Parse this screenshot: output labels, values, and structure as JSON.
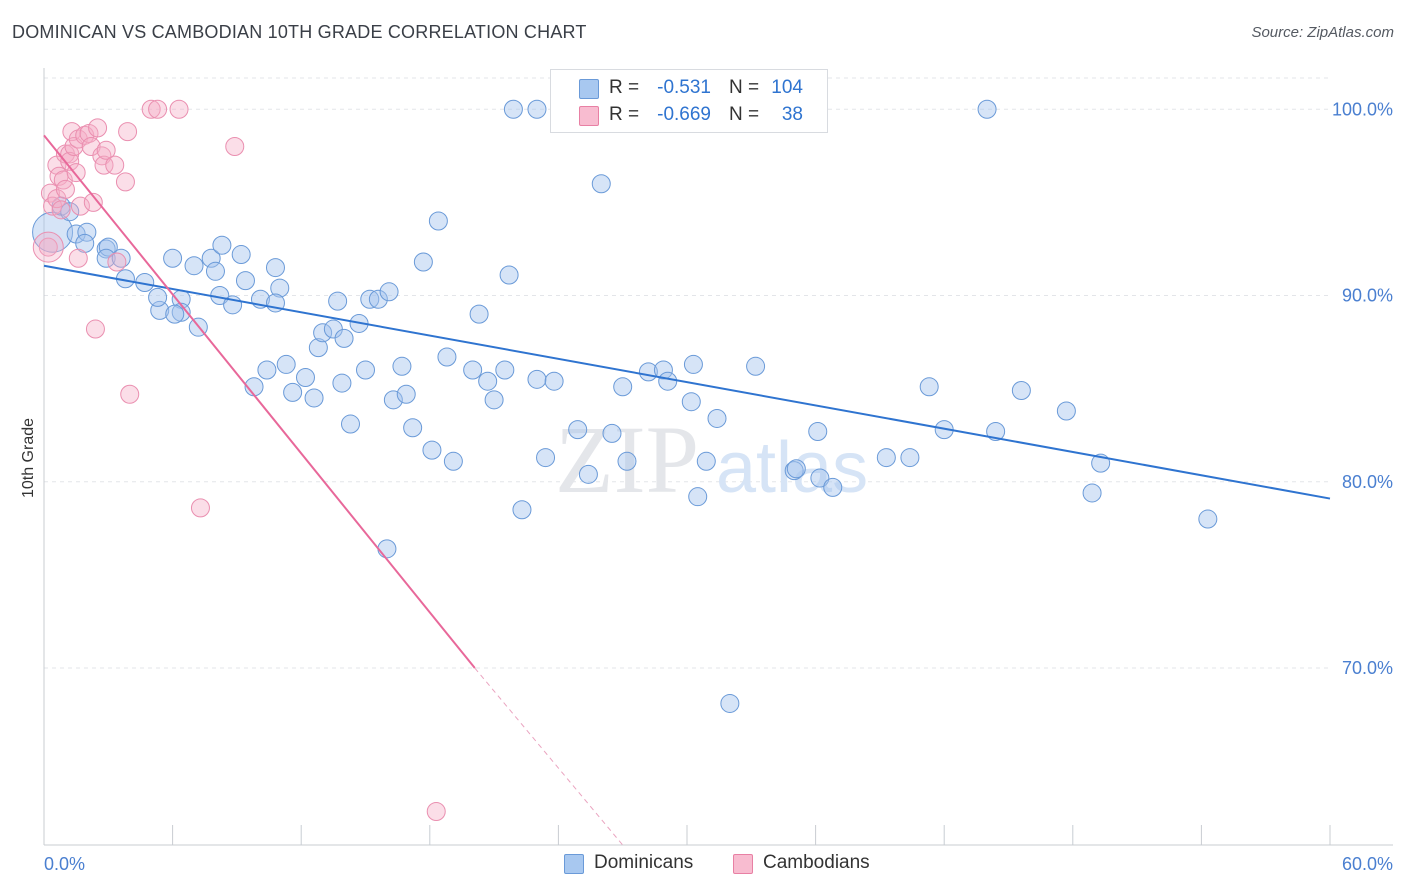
{
  "header": {
    "title": "DOMINICAN VS CAMBODIAN 10TH GRADE CORRELATION CHART",
    "source": "Source: ZipAtlas.com"
  },
  "watermark": {
    "zip": "ZIP",
    "atlas": "atlas"
  },
  "legend": {
    "rows": [
      {
        "r_label": "R =",
        "r_value": "-0.531",
        "n_label": "N =",
        "n_value": "104",
        "color": "#a8c8f0",
        "stroke": "#6a9ad8"
      },
      {
        "r_label": "R =",
        "r_value": "-0.669",
        "n_label": "N =",
        "n_value": "38",
        "color": "#f8bcd0",
        "stroke": "#e880a4"
      }
    ]
  },
  "bottom_legend": [
    {
      "label": "Dominicans",
      "color": "#a8c8f0",
      "stroke": "#6a9ad8"
    },
    {
      "label": "Cambodians",
      "color": "#f8bcd0",
      "stroke": "#e880a4"
    }
  ],
  "chart_data": {
    "type": "scatter",
    "title": "DOMINICAN VS CAMBODIAN 10TH GRADE CORRELATION CHART",
    "xlabel": "",
    "ylabel": "10th Grade",
    "xlim": [
      0,
      60
    ],
    "ylim": [
      60.5,
      102
    ],
    "x_ticks": [
      "0.0%",
      "60.0%"
    ],
    "y_ticks": [
      {
        "value": 100,
        "label": "100.0%"
      },
      {
        "value": 90,
        "label": "90.0%"
      },
      {
        "value": 80,
        "label": "80.0%"
      },
      {
        "value": 70,
        "label": "70.0%"
      }
    ],
    "grid": true,
    "legend_position": "top-center",
    "series": [
      {
        "name": "Dominicans",
        "color": "#6fa3e6",
        "trend": {
          "x0": 0,
          "y0": 91.6,
          "x1": 60,
          "y1": 79.1,
          "color": "#2f74d0"
        },
        "points": [
          [
            0.4,
            93.4
          ],
          [
            0.8,
            94.8
          ],
          [
            1.2,
            94.5
          ],
          [
            1.5,
            93.3
          ],
          [
            2.0,
            93.4
          ],
          [
            1.9,
            92.8
          ],
          [
            2.9,
            92.5
          ],
          [
            3.0,
            92.6
          ],
          [
            2.9,
            92.0
          ],
          [
            3.6,
            92.0
          ],
          [
            3.8,
            90.9
          ],
          [
            4.7,
            90.7
          ],
          [
            5.4,
            89.2
          ],
          [
            5.3,
            89.9
          ],
          [
            6.0,
            92.0
          ],
          [
            6.4,
            89.8
          ],
          [
            6.4,
            89.1
          ],
          [
            7.0,
            91.6
          ],
          [
            7.2,
            88.3
          ],
          [
            7.8,
            92.0
          ],
          [
            8.0,
            91.3
          ],
          [
            8.2,
            90.0
          ],
          [
            8.3,
            92.7
          ],
          [
            8.8,
            89.5
          ],
          [
            9.2,
            92.2
          ],
          [
            9.4,
            90.8
          ],
          [
            9.8,
            85.1
          ],
          [
            10.1,
            89.8
          ],
          [
            10.4,
            86.0
          ],
          [
            10.8,
            91.5
          ],
          [
            11.0,
            90.4
          ],
          [
            11.3,
            86.3
          ],
          [
            11.6,
            84.8
          ],
          [
            12.2,
            85.6
          ],
          [
            12.6,
            84.5
          ],
          [
            12.8,
            87.2
          ],
          [
            13.0,
            88.0
          ],
          [
            13.5,
            88.2
          ],
          [
            13.7,
            89.7
          ],
          [
            14.0,
            87.7
          ],
          [
            14.3,
            83.1
          ],
          [
            14.7,
            88.5
          ],
          [
            15.0,
            86.0
          ],
          [
            15.2,
            89.8
          ],
          [
            15.6,
            89.8
          ],
          [
            16.1,
            90.2
          ],
          [
            16.3,
            84.4
          ],
          [
            16.7,
            86.2
          ],
          [
            16.9,
            84.7
          ],
          [
            17.2,
            82.9
          ],
          [
            17.7,
            91.8
          ],
          [
            18.1,
            81.7
          ],
          [
            18.4,
            94.0
          ],
          [
            18.8,
            86.7
          ],
          [
            19.1,
            81.1
          ],
          [
            20.0,
            86.0
          ],
          [
            20.3,
            89.0
          ],
          [
            20.7,
            85.4
          ],
          [
            21.0,
            84.4
          ],
          [
            21.5,
            86.0
          ],
          [
            21.7,
            91.1
          ],
          [
            22.3,
            78.5
          ],
          [
            23.0,
            85.5
          ],
          [
            23.4,
            81.3
          ],
          [
            23.8,
            85.4
          ],
          [
            24.9,
            82.8
          ],
          [
            25.4,
            80.4
          ],
          [
            26.0,
            96.0
          ],
          [
            26.5,
            82.6
          ],
          [
            27.0,
            85.1
          ],
          [
            27.2,
            81.1
          ],
          [
            28.2,
            85.9
          ],
          [
            28.9,
            86.0
          ],
          [
            29.1,
            85.4
          ],
          [
            30.2,
            84.3
          ],
          [
            30.3,
            86.3
          ],
          [
            30.5,
            79.2
          ],
          [
            30.9,
            81.1
          ],
          [
            31.4,
            83.4
          ],
          [
            33.2,
            86.2
          ],
          [
            35.0,
            80.6
          ],
          [
            35.1,
            80.7
          ],
          [
            36.1,
            82.7
          ],
          [
            36.2,
            80.2
          ],
          [
            36.8,
            79.7
          ],
          [
            39.3,
            81.3
          ],
          [
            40.4,
            81.3
          ],
          [
            41.3,
            85.1
          ],
          [
            42.0,
            82.8
          ],
          [
            44.4,
            82.7
          ],
          [
            45.6,
            84.9
          ],
          [
            47.7,
            83.8
          ],
          [
            48.9,
            79.4
          ],
          [
            49.3,
            81.0
          ],
          [
            54.3,
            78.0
          ],
          [
            21.9,
            100.0
          ],
          [
            23.0,
            100.0
          ],
          [
            30.4,
            100.0
          ],
          [
            44.0,
            100.0
          ],
          [
            16.0,
            76.4
          ],
          [
            32.0,
            68.1
          ],
          [
            6.1,
            89.0
          ],
          [
            10.8,
            89.6
          ],
          [
            13.9,
            85.3
          ]
        ]
      },
      {
        "name": "Cambodians",
        "color": "#f4a0bc",
        "trend": {
          "x0": 0,
          "y0": 98.6,
          "x1": 20.1,
          "y1": 70.0,
          "dash_x1": 27.0,
          "dash_y1": 60.5,
          "color": "#e8689a"
        },
        "points": [
          [
            0.2,
            92.6
          ],
          [
            0.3,
            95.5
          ],
          [
            0.4,
            94.8
          ],
          [
            0.6,
            95.2
          ],
          [
            0.6,
            97.0
          ],
          [
            0.7,
            96.4
          ],
          [
            0.9,
            96.2
          ],
          [
            1.0,
            95.7
          ],
          [
            1.0,
            97.6
          ],
          [
            1.2,
            97.6
          ],
          [
            1.2,
            97.2
          ],
          [
            1.3,
            98.8
          ],
          [
            1.4,
            98.0
          ],
          [
            1.5,
            96.6
          ],
          [
            1.6,
            98.4
          ],
          [
            1.6,
            92.0
          ],
          [
            1.7,
            94.8
          ],
          [
            1.9,
            98.6
          ],
          [
            2.1,
            98.7
          ],
          [
            2.2,
            98.0
          ],
          [
            2.3,
            95.0
          ],
          [
            2.4,
            88.2
          ],
          [
            2.5,
            99.0
          ],
          [
            2.7,
            97.5
          ],
          [
            2.8,
            97.0
          ],
          [
            2.9,
            97.8
          ],
          [
            3.3,
            97.0
          ],
          [
            3.4,
            91.8
          ],
          [
            3.8,
            96.1
          ],
          [
            3.9,
            98.8
          ],
          [
            4.0,
            84.7
          ],
          [
            5.0,
            100.0
          ],
          [
            5.3,
            100.0
          ],
          [
            6.3,
            100.0
          ],
          [
            7.3,
            78.6
          ],
          [
            8.9,
            98.0
          ],
          [
            18.3,
            62.3
          ],
          [
            0.8,
            94.6
          ]
        ]
      }
    ]
  }
}
